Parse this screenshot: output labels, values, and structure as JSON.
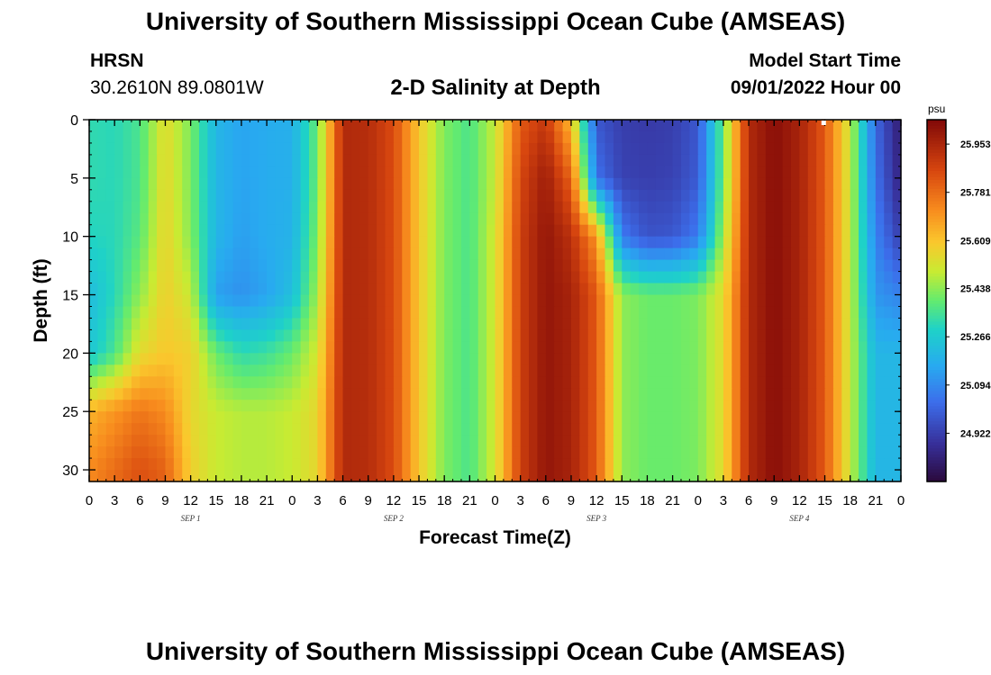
{
  "header": {
    "title": "University of Southern Mississippi Ocean Cube (AMSEAS)",
    "station": "HRSN",
    "coordinates": "30.2610N  89.0801W",
    "subtitle": "2-D Salinity at Depth",
    "model_start_label": "Model Start Time",
    "model_start_value": "09/01/2022 Hour 00"
  },
  "footer": {
    "title_repeat": "University of Southern Mississippi Ocean Cube (AMSEAS)"
  },
  "chart_data": {
    "type": "heatmap",
    "title": "2-D Salinity at Depth",
    "xlabel": "Forecast Time(Z)",
    "ylabel": "Depth (ft)",
    "x_range_hours": [
      0,
      96
    ],
    "x_ticks": [
      "0",
      "3",
      "6",
      "9",
      "12",
      "15",
      "18",
      "21",
      "0",
      "3",
      "6",
      "9",
      "12",
      "15",
      "18",
      "21",
      "0",
      "3",
      "6",
      "9",
      "12",
      "15",
      "18",
      "21",
      "0",
      "3",
      "6",
      "9",
      "12",
      "15",
      "18",
      "21",
      "0"
    ],
    "date_labels": [
      {
        "label": "SEP 1",
        "hour": 12
      },
      {
        "label": "SEP 2",
        "hour": 36
      },
      {
        "label": "SEP 3",
        "hour": 60
      },
      {
        "label": "SEP 4",
        "hour": 84
      }
    ],
    "y_range_ft": [
      0,
      31
    ],
    "y_ticks": [
      "0",
      "5",
      "10",
      "15",
      "20",
      "25",
      "30"
    ],
    "colorbar": {
      "unit": "psu",
      "min": 24.75,
      "max": 26.04,
      "tick_labels": [
        "25.953",
        "25.781",
        "25.609",
        "25.438",
        "25.266",
        "25.094",
        "24.922"
      ]
    },
    "depth_levels_ft": [
      0,
      5,
      10,
      15,
      20,
      25,
      30
    ],
    "hours": [
      0,
      3,
      6,
      9,
      12,
      15,
      18,
      21,
      24,
      27,
      30,
      33,
      36,
      39,
      42,
      45,
      48,
      51,
      54,
      57,
      60,
      63,
      66,
      69,
      72,
      75,
      78,
      81,
      84,
      87,
      90,
      93,
      96
    ],
    "salinity_psu": [
      [
        25.32,
        25.31,
        25.36,
        25.55,
        25.42,
        25.2,
        25.15,
        25.17,
        25.18,
        25.4,
        25.94,
        25.93,
        25.85,
        25.6,
        25.42,
        25.36,
        25.5,
        25.82,
        25.9,
        25.62,
        24.98,
        24.92,
        24.91,
        24.92,
        24.98,
        25.4,
        25.94,
        26.02,
        25.96,
        25.82,
        25.5,
        25.02,
        24.82
      ],
      [
        25.32,
        25.31,
        25.36,
        25.56,
        25.42,
        25.2,
        25.15,
        25.17,
        25.18,
        25.4,
        25.94,
        25.93,
        25.85,
        25.6,
        25.42,
        25.36,
        25.5,
        25.86,
        25.98,
        25.8,
        25.04,
        24.93,
        24.92,
        24.93,
        24.99,
        25.4,
        25.94,
        26.02,
        25.96,
        25.82,
        25.5,
        25.04,
        24.84
      ],
      [
        25.3,
        25.31,
        25.38,
        25.57,
        25.43,
        25.2,
        25.14,
        25.17,
        25.19,
        25.42,
        25.94,
        25.93,
        25.85,
        25.6,
        25.42,
        25.36,
        25.52,
        25.88,
        26.0,
        25.92,
        25.7,
        25.06,
        24.97,
        24.98,
        25.06,
        25.46,
        25.94,
        26.02,
        25.96,
        25.82,
        25.5,
        25.08,
        24.92
      ],
      [
        25.22,
        25.31,
        25.44,
        25.58,
        25.5,
        25.14,
        25.11,
        25.15,
        25.23,
        25.46,
        25.94,
        25.93,
        25.85,
        25.6,
        25.42,
        25.36,
        25.52,
        25.88,
        26.0,
        25.96,
        25.82,
        25.44,
        25.4,
        25.4,
        25.42,
        25.55,
        25.94,
        26.02,
        25.96,
        25.82,
        25.5,
        25.12,
        25.08
      ],
      [
        25.25,
        25.36,
        25.55,
        25.6,
        25.58,
        25.4,
        25.32,
        25.34,
        25.4,
        25.52,
        25.94,
        25.93,
        25.85,
        25.6,
        25.42,
        25.36,
        25.52,
        25.88,
        26.0,
        25.96,
        25.82,
        25.44,
        25.4,
        25.4,
        25.42,
        25.55,
        25.94,
        26.02,
        25.96,
        25.82,
        25.5,
        25.2,
        25.2
      ],
      [
        25.64,
        25.7,
        25.76,
        25.72,
        25.56,
        25.5,
        25.48,
        25.48,
        25.5,
        25.56,
        25.94,
        25.93,
        25.85,
        25.6,
        25.42,
        25.36,
        25.52,
        25.88,
        26.0,
        25.96,
        25.82,
        25.44,
        25.4,
        25.4,
        25.42,
        25.55,
        25.94,
        26.02,
        25.96,
        25.82,
        25.5,
        25.2,
        25.2
      ],
      [
        25.72,
        25.78,
        25.84,
        25.8,
        25.58,
        25.5,
        25.48,
        25.48,
        25.5,
        25.56,
        25.94,
        25.93,
        25.85,
        25.6,
        25.42,
        25.36,
        25.52,
        25.88,
        26.0,
        25.96,
        25.82,
        25.44,
        25.4,
        25.4,
        25.42,
        25.55,
        25.94,
        26.02,
        25.96,
        25.82,
        25.5,
        25.2,
        25.2
      ]
    ]
  }
}
